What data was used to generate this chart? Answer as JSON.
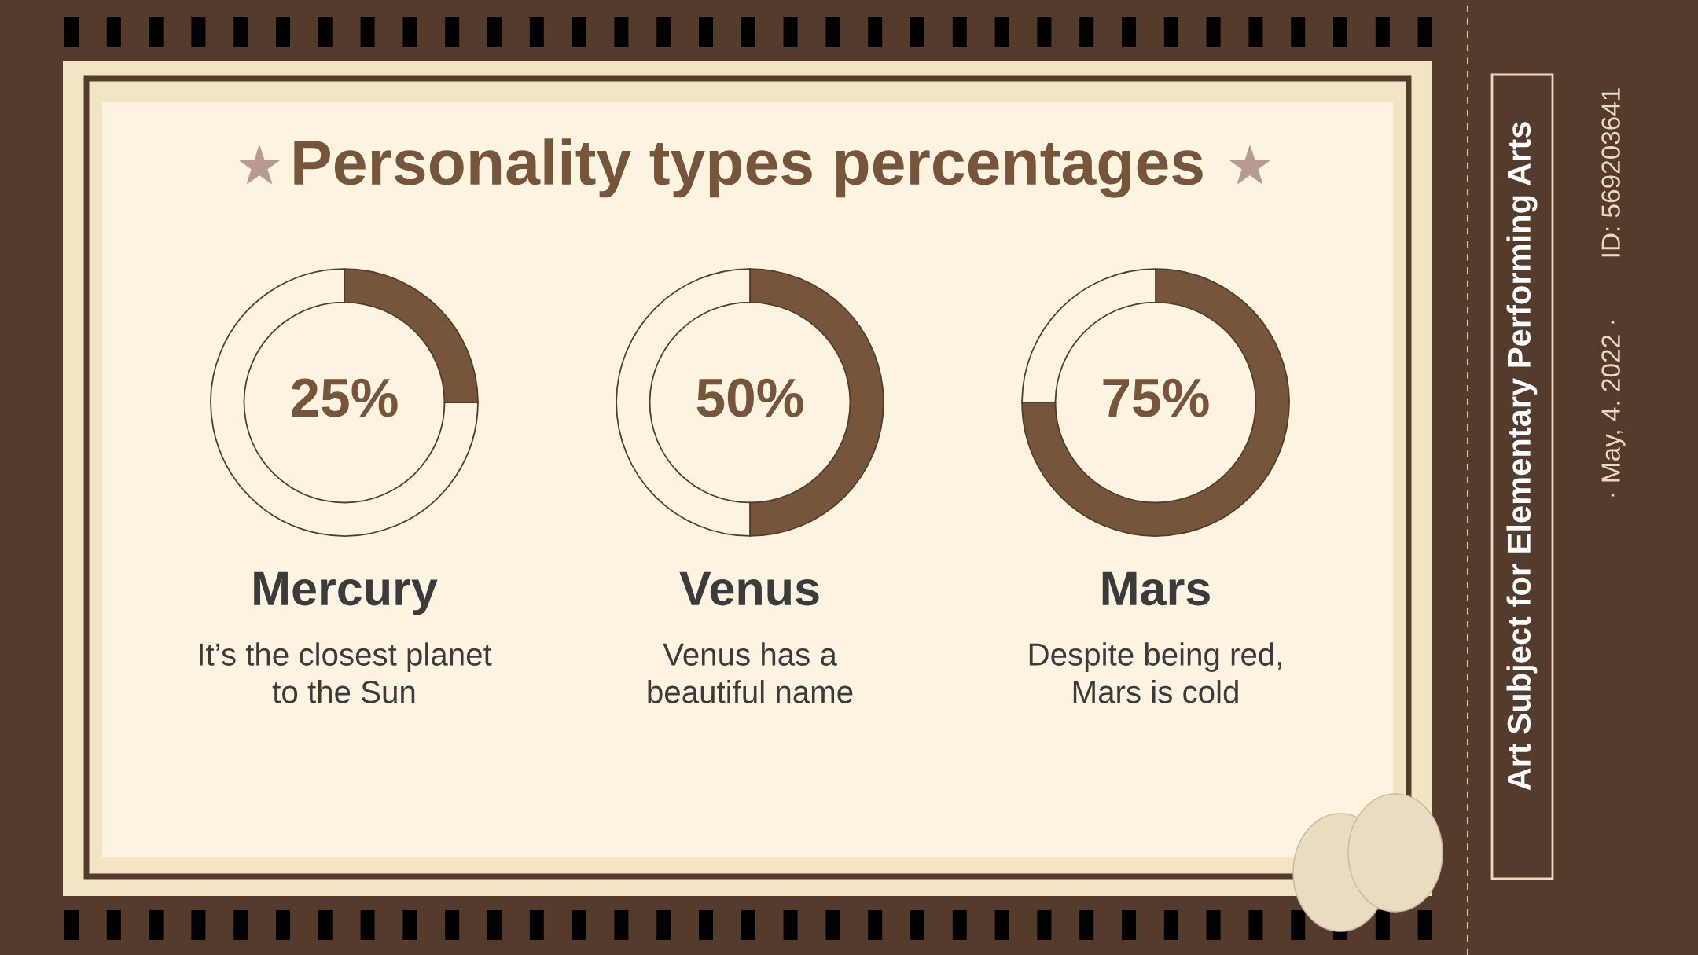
{
  "chart_data": [
    {
      "type": "other",
      "title": "Personality types percentages",
      "annotations": [
        "Art Subject for Elementary Performing Arts",
        "· May, 4. 2022 ·",
        "ID: 569203641"
      ]
    },
    {
      "type": "donut",
      "title": "Mercury",
      "categories": [
        null,
        null
      ],
      "values": [
        25,
        75
      ],
      "colors": [
        "#76553b",
        "#fdf3e1"
      ],
      "value_labels": [
        "25%",
        null
      ],
      "annotations": [
        "It’s the closest planet\nto the Sun"
      ]
    },
    {
      "type": "donut",
      "title": "Venus",
      "categories": [
        null,
        null
      ],
      "values": [
        50,
        50
      ],
      "colors": [
        "#76553b",
        "#fdf3e1"
      ],
      "value_labels": [
        "50%",
        null
      ],
      "annotations": [
        "Venus has a\nbeautiful name"
      ]
    },
    {
      "type": "donut",
      "title": "Mars",
      "categories": [
        null,
        null
      ],
      "values": [
        75,
        25
      ],
      "colors": [
        "#76553b",
        "#fdf3e1"
      ],
      "value_labels": [
        "75%",
        null
      ],
      "annotations": [
        "Despite being red,\nMars is cold"
      ]
    }
  ]
}
